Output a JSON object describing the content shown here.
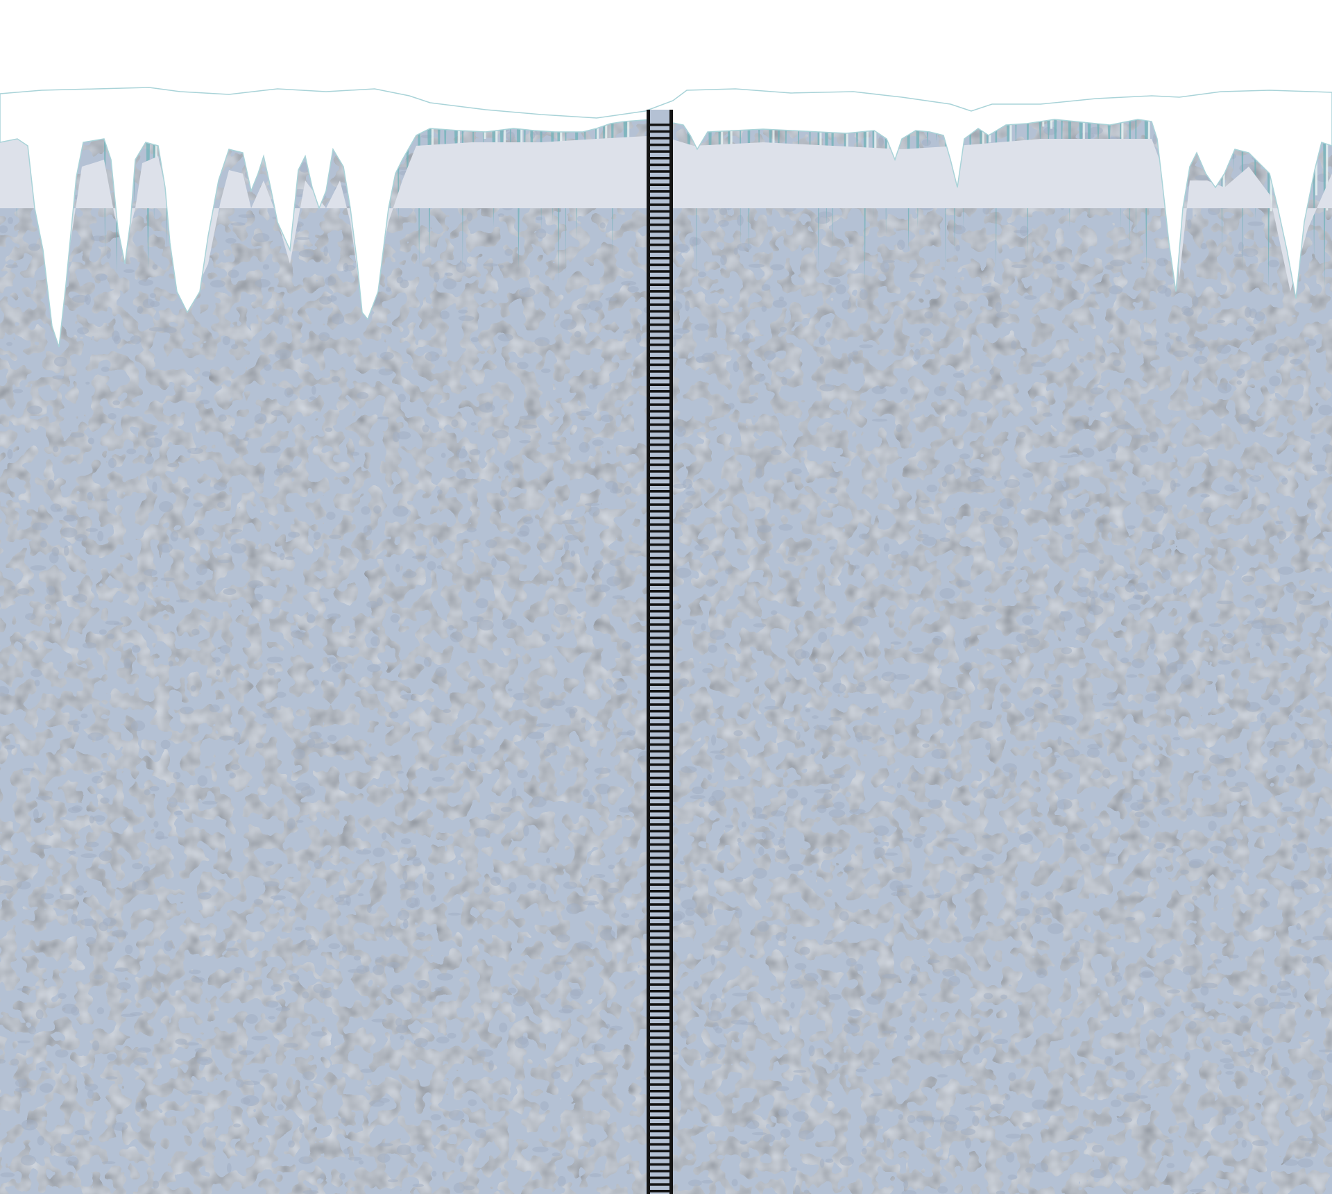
{
  "scene": {
    "sky_color": "#ffffff",
    "ice_wall": {
      "base_color": "#b4c1d4",
      "light_speckle_color": "#c6d3ea",
      "dark_speckle_color": "#a2afc3"
    },
    "snow": {
      "cap_color": "#ffffff",
      "shadow_color": "#dde1ea",
      "outline_color": "#a9d3d8"
    },
    "icicles": {
      "color": "#6fb2b8",
      "highlight_color": "#e7f4f3"
    },
    "ladder": {
      "rail_color": "#141414",
      "rung_color": "#141414",
      "gap_color": "#b4c1d4"
    }
  }
}
